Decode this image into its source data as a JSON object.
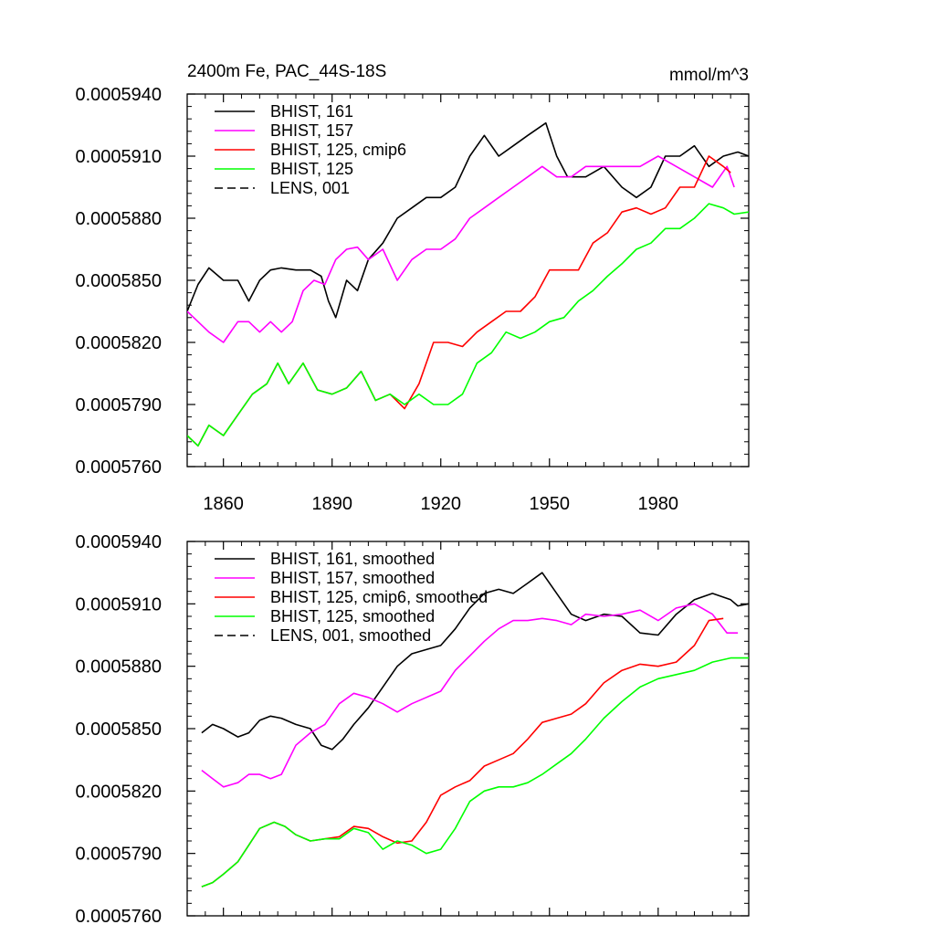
{
  "chart_data": [
    {
      "type": "line",
      "title": "2400m Fe, PAC_44S-18S",
      "units": "mmol/m^3",
      "xlim": [
        1850,
        2005
      ],
      "ylim": [
        0.000576,
        0.000594
      ],
      "xticks": [
        1860,
        1890,
        1920,
        1950,
        1980
      ],
      "xtick_labels": [
        "1860",
        "1890",
        "1920",
        "1950",
        "1980"
      ],
      "yticks": [
        0.000576,
        0.000579,
        0.000582,
        0.000585,
        0.000588,
        0.000591,
        0.000594
      ],
      "ytick_labels": [
        "0.0005760",
        "0.0005790",
        "0.0005820",
        "0.0005850",
        "0.0005880",
        "0.0005910",
        "0.0005940"
      ],
      "grid": false,
      "legend_position": "top-left",
      "series": [
        {
          "name": "BHIST, 161",
          "color": "#000000",
          "dash": "solid",
          "x": [
            1850,
            1853,
            1856,
            1860,
            1864,
            1867,
            1870,
            1873,
            1876,
            1880,
            1884,
            1887,
            1889,
            1891,
            1894,
            1897,
            1900,
            1904,
            1908,
            1912,
            1916,
            1920,
            1924,
            1928,
            1932,
            1936,
            1940,
            1944,
            1949,
            1952,
            1955,
            1960,
            1965,
            1970,
            1974,
            1978,
            1982,
            1986,
            1990,
            1994,
            1998,
            2002,
            2005
          ],
          "y": [
            0.0005835,
            0.0005848,
            0.0005856,
            0.000585,
            0.000585,
            0.000584,
            0.000585,
            0.0005855,
            0.0005856,
            0.0005855,
            0.0005855,
            0.0005852,
            0.000584,
            0.0005832,
            0.000585,
            0.0005845,
            0.000586,
            0.0005868,
            0.000588,
            0.0005885,
            0.000589,
            0.000589,
            0.0005895,
            0.000591,
            0.000592,
            0.000591,
            0.0005915,
            0.000592,
            0.0005926,
            0.000591,
            0.00059,
            0.00059,
            0.0005905,
            0.0005895,
            0.000589,
            0.0005895,
            0.000591,
            0.000591,
            0.0005915,
            0.0005905,
            0.000591,
            0.0005912,
            0.000591
          ]
        },
        {
          "name": "BHIST, 157",
          "color": "#ff00ff",
          "dash": "solid",
          "x": [
            1850,
            1853,
            1856,
            1860,
            1864,
            1867,
            1870,
            1873,
            1876,
            1879,
            1882,
            1885,
            1888,
            1891,
            1894,
            1897,
            1900,
            1904,
            1908,
            1912,
            1916,
            1920,
            1924,
            1928,
            1932,
            1936,
            1940,
            1944,
            1948,
            1952,
            1956,
            1960,
            1965,
            1970,
            1975,
            1980,
            1985,
            1990,
            1995,
            1999,
            2001
          ],
          "y": [
            0.0005835,
            0.000583,
            0.0005825,
            0.000582,
            0.000583,
            0.000583,
            0.0005825,
            0.000583,
            0.0005825,
            0.000583,
            0.0005845,
            0.000585,
            0.0005848,
            0.000586,
            0.0005865,
            0.0005866,
            0.000586,
            0.0005865,
            0.000585,
            0.000586,
            0.0005865,
            0.0005865,
            0.000587,
            0.000588,
            0.0005885,
            0.000589,
            0.0005895,
            0.00059,
            0.0005905,
            0.00059,
            0.00059,
            0.0005905,
            0.0005905,
            0.0005905,
            0.0005905,
            0.000591,
            0.0005905,
            0.00059,
            0.0005895,
            0.0005905,
            0.0005895
          ]
        },
        {
          "name": "BHIST, 125, cmip6",
          "color": "#ff0000",
          "dash": "solid",
          "x": [
            1850,
            1853,
            1856,
            1860,
            1864,
            1868,
            1872,
            1875,
            1878,
            1882,
            1886,
            1890,
            1894,
            1898,
            1902,
            1906,
            1910,
            1914,
            1918,
            1922,
            1926,
            1930,
            1934,
            1938,
            1942,
            1946,
            1950,
            1954,
            1958,
            1962,
            1966,
            1970,
            1974,
            1978,
            1982,
            1986,
            1990,
            1994,
            1998,
            2000
          ],
          "y": [
            0.0005775,
            0.000577,
            0.000578,
            0.0005775,
            0.0005785,
            0.0005795,
            0.00058,
            0.000581,
            0.00058,
            0.000581,
            0.0005797,
            0.0005795,
            0.0005798,
            0.0005806,
            0.0005792,
            0.0005795,
            0.0005788,
            0.00058,
            0.000582,
            0.000582,
            0.0005818,
            0.0005825,
            0.000583,
            0.0005835,
            0.0005835,
            0.0005842,
            0.0005855,
            0.0005855,
            0.0005855,
            0.0005868,
            0.0005873,
            0.0005883,
            0.0005885,
            0.0005882,
            0.0005885,
            0.0005895,
            0.0005895,
            0.000591,
            0.0005905,
            0.0005902
          ]
        },
        {
          "name": "BHIST, 125",
          "color": "#00ff00",
          "dash": "solid",
          "x": [
            1850,
            1853,
            1856,
            1860,
            1864,
            1868,
            1872,
            1875,
            1878,
            1882,
            1886,
            1890,
            1894,
            1898,
            1902,
            1906,
            1910,
            1914,
            1918,
            1922,
            1926,
            1930,
            1934,
            1938,
            1942,
            1946,
            1950,
            1954,
            1958,
            1962,
            1966,
            1970,
            1974,
            1978,
            1982,
            1986,
            1990,
            1994,
            1998,
            2001,
            2005
          ],
          "y": [
            0.0005775,
            0.000577,
            0.000578,
            0.0005775,
            0.0005785,
            0.0005795,
            0.00058,
            0.000581,
            0.00058,
            0.000581,
            0.0005797,
            0.0005795,
            0.0005798,
            0.0005806,
            0.0005792,
            0.0005795,
            0.000579,
            0.0005795,
            0.000579,
            0.000579,
            0.0005795,
            0.000581,
            0.0005815,
            0.0005825,
            0.0005822,
            0.0005825,
            0.000583,
            0.0005832,
            0.000584,
            0.0005845,
            0.0005852,
            0.0005858,
            0.0005865,
            0.0005868,
            0.0005875,
            0.0005875,
            0.000588,
            0.0005887,
            0.0005885,
            0.0005882,
            0.0005883
          ]
        },
        {
          "name": "LENS, 001",
          "color": "#000000",
          "dash": "dashed",
          "x": [],
          "y": []
        }
      ]
    },
    {
      "type": "line",
      "title": "",
      "units": "",
      "xlim": [
        1850,
        2005
      ],
      "ylim": [
        0.000576,
        0.000594
      ],
      "xticks": [
        1860,
        1890,
        1920,
        1950,
        1980
      ],
      "xtick_labels": [],
      "yticks": [
        0.000576,
        0.000579,
        0.000582,
        0.000585,
        0.000588,
        0.000591,
        0.000594
      ],
      "ytick_labels": [
        "0.0005760",
        "0.0005790",
        "0.0005820",
        "0.0005850",
        "0.0005880",
        "0.0005910",
        "0.0005940"
      ],
      "grid": false,
      "legend_position": "top-left",
      "series": [
        {
          "name": "BHIST, 161, smoothed",
          "color": "#000000",
          "dash": "solid",
          "x": [
            1854,
            1857,
            1860,
            1864,
            1867,
            1870,
            1873,
            1876,
            1880,
            1884,
            1887,
            1890,
            1893,
            1896,
            1900,
            1904,
            1908,
            1912,
            1916,
            1920,
            1924,
            1928,
            1932,
            1936,
            1940,
            1944,
            1948,
            1952,
            1956,
            1960,
            1965,
            1970,
            1975,
            1980,
            1985,
            1990,
            1995,
            2000,
            2002,
            2005
          ],
          "y": [
            0.0005848,
            0.0005852,
            0.000585,
            0.0005846,
            0.0005848,
            0.0005854,
            0.0005856,
            0.0005855,
            0.0005852,
            0.000585,
            0.0005842,
            0.000584,
            0.0005845,
            0.0005852,
            0.000586,
            0.000587,
            0.000588,
            0.0005886,
            0.0005888,
            0.000589,
            0.0005898,
            0.0005908,
            0.0005915,
            0.0005917,
            0.0005915,
            0.000592,
            0.0005925,
            0.0005915,
            0.0005905,
            0.0005902,
            0.0005905,
            0.0005904,
            0.0005896,
            0.0005895,
            0.0005905,
            0.0005912,
            0.0005915,
            0.0005912,
            0.0005909,
            0.000591
          ]
        },
        {
          "name": "BHIST, 157, smoothed",
          "color": "#ff00ff",
          "dash": "solid",
          "x": [
            1854,
            1857,
            1860,
            1864,
            1867,
            1870,
            1873,
            1876,
            1880,
            1884,
            1888,
            1892,
            1896,
            1900,
            1904,
            1908,
            1912,
            1916,
            1920,
            1924,
            1928,
            1932,
            1936,
            1940,
            1944,
            1948,
            1952,
            1956,
            1960,
            1965,
            1970,
            1975,
            1980,
            1985,
            1990,
            1995,
            1999,
            2002
          ],
          "y": [
            0.000583,
            0.0005826,
            0.0005822,
            0.0005824,
            0.0005828,
            0.0005828,
            0.0005826,
            0.0005828,
            0.0005842,
            0.0005848,
            0.0005852,
            0.0005862,
            0.0005867,
            0.0005865,
            0.0005862,
            0.0005858,
            0.0005862,
            0.0005865,
            0.0005868,
            0.0005878,
            0.0005885,
            0.0005892,
            0.0005898,
            0.0005902,
            0.0005902,
            0.0005903,
            0.0005902,
            0.00059,
            0.0005905,
            0.0005904,
            0.0005905,
            0.0005907,
            0.0005902,
            0.0005908,
            0.000591,
            0.0005905,
            0.0005896,
            0.0005896
          ]
        },
        {
          "name": "BHIST, 125, cmip6, smoothed",
          "color": "#ff0000",
          "dash": "solid",
          "x": [
            1854,
            1857,
            1860,
            1864,
            1867,
            1870,
            1874,
            1877,
            1880,
            1884,
            1888,
            1892,
            1896,
            1900,
            1904,
            1908,
            1912,
            1916,
            1920,
            1924,
            1928,
            1932,
            1936,
            1940,
            1944,
            1948,
            1952,
            1956,
            1960,
            1965,
            1970,
            1975,
            1980,
            1985,
            1990,
            1994,
            1998
          ],
          "y": [
            0.0005774,
            0.0005776,
            0.000578,
            0.0005786,
            0.0005794,
            0.0005802,
            0.0005805,
            0.0005803,
            0.0005799,
            0.0005796,
            0.0005797,
            0.0005798,
            0.0005803,
            0.0005802,
            0.0005798,
            0.0005795,
            0.0005796,
            0.0005805,
            0.0005818,
            0.0005822,
            0.0005825,
            0.0005832,
            0.0005835,
            0.0005838,
            0.0005845,
            0.0005853,
            0.0005855,
            0.0005857,
            0.0005862,
            0.0005872,
            0.0005878,
            0.0005881,
            0.000588,
            0.0005882,
            0.000589,
            0.0005902,
            0.0005903
          ]
        },
        {
          "name": "BHIST, 125, smoothed",
          "color": "#00ff00",
          "dash": "solid",
          "x": [
            1854,
            1857,
            1860,
            1864,
            1867,
            1870,
            1874,
            1877,
            1880,
            1884,
            1888,
            1892,
            1896,
            1900,
            1904,
            1908,
            1912,
            1916,
            1920,
            1924,
            1928,
            1932,
            1936,
            1940,
            1944,
            1948,
            1952,
            1956,
            1960,
            1965,
            1970,
            1975,
            1980,
            1985,
            1990,
            1995,
            2000,
            2002,
            2005
          ],
          "y": [
            0.0005774,
            0.0005776,
            0.000578,
            0.0005786,
            0.0005794,
            0.0005802,
            0.0005805,
            0.0005803,
            0.0005799,
            0.0005796,
            0.0005797,
            0.0005797,
            0.0005802,
            0.00058,
            0.0005792,
            0.0005796,
            0.0005794,
            0.000579,
            0.0005792,
            0.0005802,
            0.0005815,
            0.000582,
            0.0005822,
            0.0005822,
            0.0005824,
            0.0005828,
            0.0005833,
            0.0005838,
            0.0005845,
            0.0005855,
            0.0005863,
            0.000587,
            0.0005874,
            0.0005876,
            0.0005878,
            0.0005882,
            0.0005884,
            0.0005884,
            0.0005884
          ]
        },
        {
          "name": "LENS, 001, smoothed",
          "color": "#000000",
          "dash": "dashed",
          "x": [],
          "y": []
        }
      ]
    }
  ]
}
